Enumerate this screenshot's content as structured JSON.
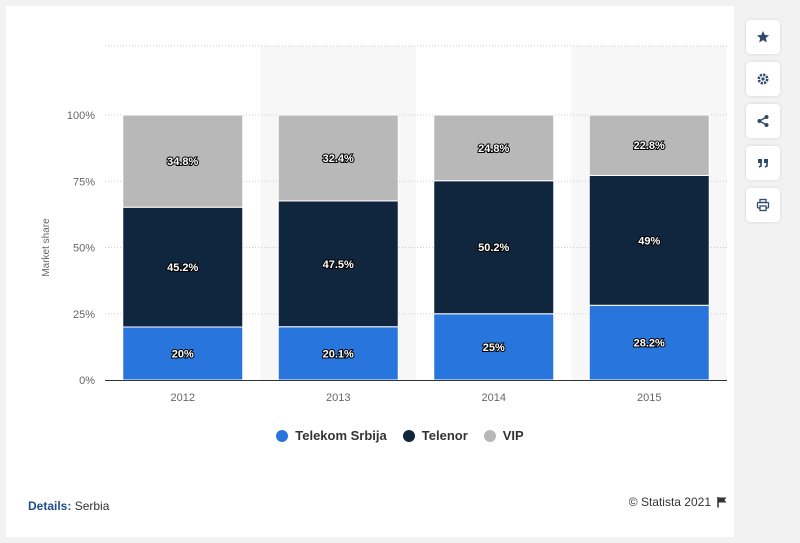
{
  "chart_data": {
    "type": "bar",
    "stacked": true,
    "categories": [
      "2012",
      "2013",
      "2014",
      "2015"
    ],
    "series": [
      {
        "name": "Telekom Srbija",
        "values": [
          20,
          20.1,
          25,
          28.2
        ],
        "labels": [
          "20%",
          "20.1%",
          "25%",
          "28.2%"
        ],
        "color": "#2876dd"
      },
      {
        "name": "Telenor",
        "values": [
          45.2,
          47.5,
          50.2,
          49
        ],
        "labels": [
          "45.2%",
          "47.5%",
          "50.2%",
          "49%"
        ],
        "color": "#10263f"
      },
      {
        "name": "VIP",
        "values": [
          34.8,
          32.4,
          24.8,
          22.8
        ],
        "labels": [
          "34.8%",
          "32.4%",
          "24.8%",
          "22.8%"
        ],
        "color": "#b8b8b8"
      }
    ],
    "ylabel": "Market share",
    "ylim": [
      0,
      100
    ],
    "yticks": [
      "0%",
      "25%",
      "50%",
      "75%",
      "100%"
    ],
    "grid": true,
    "legend_position": "bottom"
  },
  "footer": {
    "details_label": "Details:",
    "details_value": "Serbia",
    "credit": "© Statista 2021"
  },
  "toolbar": [
    "star-icon",
    "gear-icon",
    "share-icon",
    "quote-icon",
    "print-icon"
  ]
}
